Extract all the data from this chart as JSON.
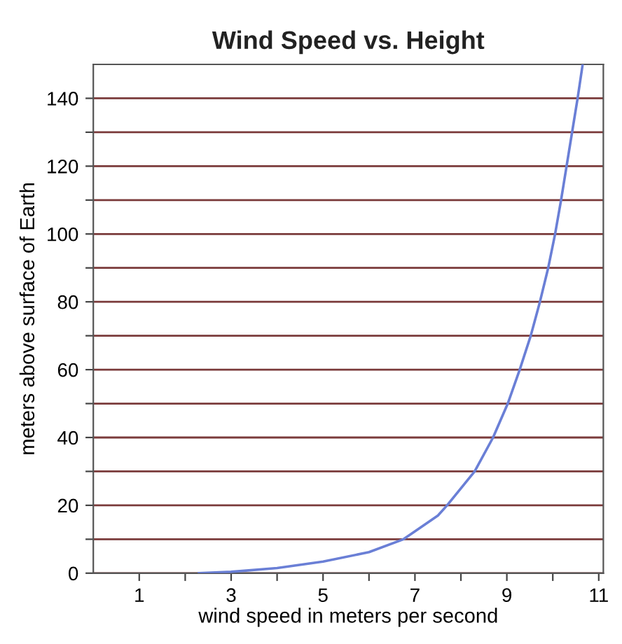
{
  "chart_data": {
    "type": "line",
    "title": "Wind Speed vs. Height",
    "xlabel": "wind speed in meters per second",
    "ylabel": "meters above surface of Earth",
    "x": [
      2.3,
      3,
      4,
      5,
      6,
      6.75,
      7.5,
      7.7,
      8.3,
      8.7,
      9.02,
      9.28,
      9.52,
      9.72,
      9.9,
      10.05,
      10.18,
      10.3,
      10.42,
      10.54,
      10.65
    ],
    "series": [
      {
        "color": "#6a7fd6",
        "values": [
          0,
          0.4,
          1.5,
          3.4,
          6.2,
          10,
          17,
          20,
          30,
          40,
          50,
          60,
          70,
          80,
          90,
          100,
          110,
          120,
          130,
          140,
          150
        ]
      }
    ],
    "xlim": [
      0,
      11.1
    ],
    "ylim": [
      0,
      150
    ],
    "xticks": [
      1,
      {
        "value": 2,
        "label": null
      },
      3,
      {
        "value": 4,
        "label": null
      },
      5,
      {
        "value": 6,
        "label": null
      },
      7,
      {
        "value": 8,
        "label": null
      },
      9,
      {
        "value": 10,
        "label": null
      },
      11
    ],
    "yticks": [
      0,
      {
        "value": 10,
        "label": null
      },
      20,
      {
        "value": 30,
        "label": null
      },
      40,
      {
        "value": 50,
        "label": null
      },
      60,
      {
        "value": 70,
        "label": null
      },
      80,
      {
        "value": 90,
        "label": null
      },
      100,
      {
        "value": 110,
        "label": null
      },
      120,
      {
        "value": 130,
        "label": null
      },
      140
    ],
    "grid": "y",
    "marker": "none",
    "line_style": "solid",
    "legend": false
  }
}
